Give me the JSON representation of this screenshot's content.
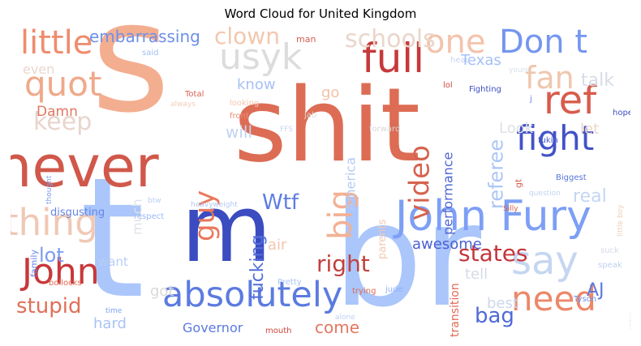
{
  "title": "Word Cloud for United Kingdom",
  "chart_data": {
    "type": "word_cloud",
    "title": "Word Cloud for United Kingdom",
    "colormap": "coolwarm",
    "words": [
      {
        "text": "shit",
        "color": "#dd6c55"
      },
      {
        "text": "s",
        "color": "#f3ae90"
      },
      {
        "text": "t",
        "color": "#aac6fb"
      },
      {
        "text": "br",
        "color": "#aac6fb"
      },
      {
        "text": "never",
        "color": "#d0584a"
      },
      {
        "text": "m",
        "color": "#3b4cc0"
      },
      {
        "text": "John Fury",
        "color": "#7d9ff5"
      },
      {
        "text": "absolutely",
        "color": "#5b7be0"
      },
      {
        "text": "Don t",
        "color": "#7596ef"
      },
      {
        "text": "need",
        "color": "#ec8869"
      },
      {
        "text": "usyk",
        "color": "#dcdcdc"
      },
      {
        "text": "one",
        "color": "#f4c3ab"
      },
      {
        "text": "full",
        "color": "#c6393a"
      },
      {
        "text": "fight",
        "color": "#4252c8"
      },
      {
        "text": "thing",
        "color": "#f0c8b4"
      },
      {
        "text": "John",
        "color": "#c7383a"
      },
      {
        "text": "ref",
        "color": "#d85b4b"
      },
      {
        "text": "say",
        "color": "#c5d6f1"
      },
      {
        "text": "little",
        "color": "#ef8c6e"
      },
      {
        "text": "quot",
        "color": "#f0a98b"
      },
      {
        "text": "keep",
        "color": "#e8d5cc"
      },
      {
        "text": "fan",
        "color": "#f0c6ae"
      },
      {
        "text": "video",
        "color": "#d5634f"
      },
      {
        "text": "big",
        "color": "#f2b195"
      },
      {
        "text": "guy",
        "color": "#e9785d"
      },
      {
        "text": "stupid",
        "color": "#e07058"
      },
      {
        "text": "schools",
        "color": "#ead6cb"
      },
      {
        "text": "clown",
        "color": "#f3c7ae"
      },
      {
        "text": "embarrassing",
        "color": "#6f8fea"
      },
      {
        "text": "referee",
        "color": "#abc5f8"
      },
      {
        "text": "Wtf",
        "color": "#5d7ce2"
      },
      {
        "text": "right",
        "color": "#c1403e"
      },
      {
        "text": "states",
        "color": "#c4363b"
      },
      {
        "text": "AJ",
        "color": "#5c79df"
      },
      {
        "text": "bag",
        "color": "#4f69d8"
      },
      {
        "text": "real",
        "color": "#c4d5f2"
      },
      {
        "text": "talk",
        "color": "#d6dce7"
      },
      {
        "text": "fucking",
        "color": "#5470dc"
      },
      {
        "text": "awesome",
        "color": "#4b61d1"
      },
      {
        "text": "performance",
        "color": "#4e66d4"
      },
      {
        "text": "Governor",
        "color": "#5c79df"
      },
      {
        "text": "come",
        "color": "#e27761"
      },
      {
        "text": "lot",
        "color": "#7b9bf1"
      },
      {
        "text": "know",
        "color": "#a8c1f5"
      },
      {
        "text": "will",
        "color": "#c2d2f1"
      },
      {
        "text": "go",
        "color": "#f3c1a8"
      },
      {
        "text": "Damn",
        "color": "#e07760"
      },
      {
        "text": "even",
        "color": "#e9d7ce"
      },
      {
        "text": "Texas",
        "color": "#a6c0f7"
      },
      {
        "text": "America",
        "color": "#b5cbf4"
      },
      {
        "text": "much",
        "color": "#dde1e8"
      },
      {
        "text": "want",
        "color": "#b7cdf5"
      },
      {
        "text": "got",
        "color": "#d9d9d9"
      },
      {
        "text": "hard",
        "color": "#a9c3f6"
      },
      {
        "text": "best",
        "color": "#cdd8ec"
      },
      {
        "text": "tell",
        "color": "#d5dbe5"
      },
      {
        "text": "air",
        "color": "#f2c6b0"
      },
      {
        "text": "Look",
        "color": "#dee0e5"
      },
      {
        "text": "let",
        "color": "#ead4c9"
      },
      {
        "text": "transition",
        "color": "#e26a55"
      },
      {
        "text": "parents",
        "color": "#f2c9b3"
      },
      {
        "text": "disgusting",
        "color": "#6585e6"
      },
      {
        "text": "man",
        "color": "#d45d4c"
      },
      {
        "text": "said",
        "color": "#a1bdf7"
      },
      {
        "text": "Total",
        "color": "#d8604f"
      },
      {
        "text": "looking",
        "color": "#f4c7b0"
      },
      {
        "text": "front",
        "color": "#ea8f74"
      },
      {
        "text": "always",
        "color": "#f1cdb9"
      },
      {
        "text": "jab",
        "color": "#dfdfdf"
      },
      {
        "text": "FFS",
        "color": "#c7d5ef"
      },
      {
        "text": "lol",
        "color": "#cf4a43"
      },
      {
        "text": "forward",
        "color": "#d7d7d7"
      },
      {
        "text": "Fighting",
        "color": "#3d4fc2"
      },
      {
        "text": "head",
        "color": "#c5d6f2"
      },
      {
        "text": "youre",
        "color": "#d9e0ea"
      },
      {
        "text": "j",
        "color": "#6381e5"
      },
      {
        "text": "hope",
        "color": "#3d4fc2"
      },
      {
        "text": "fukin",
        "color": "#4458cb"
      },
      {
        "text": "gt",
        "color": "#d96150"
      },
      {
        "text": "Biggest",
        "color": "#5676dc"
      },
      {
        "text": "question",
        "color": "#c4d3ee"
      },
      {
        "text": "Silly",
        "color": "#d6604d"
      },
      {
        "text": "btw",
        "color": "#bbcef3"
      },
      {
        "text": "respect",
        "color": "#9ab9f8"
      },
      {
        "text": "heavyweight",
        "color": "#b3c8f4"
      },
      {
        "text": "thought",
        "color": "#7a9bf1"
      },
      {
        "text": "family",
        "color": "#6483e5"
      },
      {
        "text": "bollocks",
        "color": "#e26952"
      },
      {
        "text": "time",
        "color": "#7d9ff2"
      },
      {
        "text": "mouth",
        "color": "#d0473e"
      },
      {
        "text": "alone",
        "color": "#c0d1f2"
      },
      {
        "text": "Pretty",
        "color": "#aac4f7"
      },
      {
        "text": "trying",
        "color": "#e06c55"
      },
      {
        "text": "jude",
        "color": "#8fb0f8"
      },
      {
        "text": "Tyson",
        "color": "#6f90ea"
      },
      {
        "text": "suck",
        "color": "#d5dae5"
      },
      {
        "text": "speak",
        "color": "#bfd0f3"
      },
      {
        "text": "little boy",
        "color": "#f0cdb9"
      },
      {
        "text": "wow",
        "color": "#cfd9ec"
      }
    ]
  }
}
